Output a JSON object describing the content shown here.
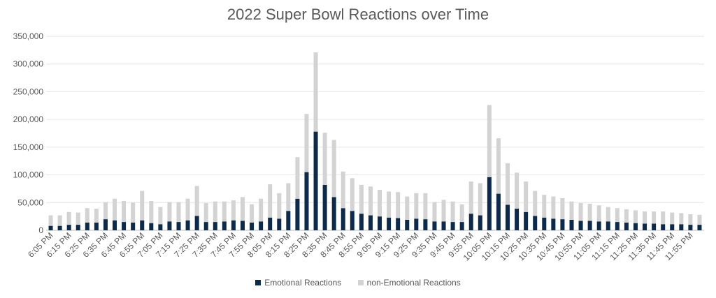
{
  "chart_data": {
    "type": "bar",
    "stacked": true,
    "title": "2022 Super Bowl Reactions over Time",
    "xlabel": "",
    "ylabel": "",
    "ylim": [
      0,
      350000
    ],
    "yticks": [
      0,
      50000,
      100000,
      150000,
      200000,
      250000,
      300000,
      350000
    ],
    "ytick_labels": [
      "0",
      "50,000",
      "100,000",
      "150,000",
      "200,000",
      "250,000",
      "300,000",
      "350,000"
    ],
    "grid": true,
    "legend_position": "bottom",
    "categories": [
      "6:05 PM",
      "6:10 PM",
      "6:15 PM",
      "6:20 PM",
      "6:25 PM",
      "6:30 PM",
      "6:35 PM",
      "6:40 PM",
      "6:45 PM",
      "6:50 PM",
      "6:55 PM",
      "7:00 PM",
      "7:05 PM",
      "7:10 PM",
      "7:15 PM",
      "7:20 PM",
      "7:25 PM",
      "7:30 PM",
      "7:35 PM",
      "7:40 PM",
      "7:45 PM",
      "7:50 PM",
      "7:55 PM",
      "8:00 PM",
      "8:05 PM",
      "8:10 PM",
      "8:15 PM",
      "8:20 PM",
      "8:25 PM",
      "8:30 PM",
      "8:35 PM",
      "8:40 PM",
      "8:45 PM",
      "8:50 PM",
      "8:55 PM",
      "9:00 PM",
      "9:05 PM",
      "9:10 PM",
      "9:15 PM",
      "9:20 PM",
      "9:25 PM",
      "9:30 PM",
      "9:35 PM",
      "9:40 PM",
      "9:45 PM",
      "9:50 PM",
      "9:55 PM",
      "10:00 PM",
      "10:05 PM",
      "10:10 PM",
      "10:15 PM",
      "10:20 PM",
      "10:25 PM",
      "10:30 PM",
      "10:35 PM",
      "10:40 PM",
      "10:45 PM",
      "10:50 PM",
      "10:55 PM",
      "11:00 PM",
      "11:05 PM",
      "11:10 PM",
      "11:15 PM",
      "11:20 PM",
      "11:25 PM",
      "11:30 PM",
      "11:35 PM",
      "11:40 PM",
      "11:45 PM",
      "11:50 PM",
      "11:55 PM",
      "12:00 AM"
    ],
    "shown_tick_labels": [
      "6:05 PM",
      "6:15 PM",
      "6:25 PM",
      "6:35 PM",
      "6:45 PM",
      "6:55 PM",
      "7:05 PM",
      "7:15 PM",
      "7:25 PM",
      "7:35 PM",
      "7:45 PM",
      "7:55 PM",
      "8:05 PM",
      "8:15 PM",
      "8:25 PM",
      "8:35 PM",
      "8:45 PM",
      "8:55 PM",
      "9:05 PM",
      "9:15 PM",
      "9:25 PM",
      "9:35 PM",
      "9:45 PM",
      "9:55 PM",
      "10:05 PM",
      "10:15 PM",
      "10:25 PM",
      "10:35 PM",
      "10:45 PM",
      "10:55 PM",
      "11:05 PM",
      "11:15 PM",
      "11:25 PM",
      "11:35 PM",
      "11:45 PM",
      "11:55 PM"
    ],
    "series": [
      {
        "name": "Emotional Reactions",
        "color": "#0d2a4a",
        "values": [
          8000,
          8000,
          10000,
          10000,
          14000,
          14000,
          20000,
          18000,
          15000,
          14000,
          18000,
          13000,
          11000,
          16000,
          15000,
          18000,
          26000,
          15000,
          15000,
          16000,
          18000,
          17000,
          14000,
          16000,
          23000,
          21000,
          35000,
          57000,
          105000,
          178000,
          82000,
          60000,
          40000,
          35000,
          30000,
          27000,
          25000,
          23000,
          22000,
          19000,
          21000,
          20000,
          16000,
          16000,
          15000,
          15000,
          30000,
          27000,
          96000,
          66000,
          46000,
          39000,
          33000,
          26000,
          23000,
          21000,
          20000,
          19000,
          17000,
          17000,
          16000,
          16000,
          15000,
          14000,
          13000,
          12000,
          12000,
          11000,
          11000,
          11000,
          10000,
          10000
        ]
      },
      {
        "name": "non-Emotional Reactions",
        "color": "#d3d3d3",
        "values": [
          19000,
          19000,
          23000,
          22000,
          26000,
          25000,
          31000,
          39000,
          38000,
          36000,
          53000,
          40000,
          31000,
          35000,
          36000,
          39000,
          54000,
          34000,
          37000,
          36000,
          36000,
          43000,
          33000,
          41000,
          60000,
          46000,
          50000,
          75000,
          105000,
          143000,
          94000,
          103000,
          66000,
          59000,
          52000,
          52000,
          48000,
          47000,
          47000,
          42000,
          46000,
          47000,
          35000,
          39000,
          37000,
          32000,
          58000,
          58000,
          130000,
          100000,
          75000,
          65000,
          55000,
          45000,
          41000,
          40000,
          38000,
          33000,
          32000,
          31000,
          29000,
          26000,
          25000,
          24000,
          23000,
          22000,
          22000,
          23000,
          21000,
          20000,
          19000,
          18000
        ]
      }
    ]
  }
}
